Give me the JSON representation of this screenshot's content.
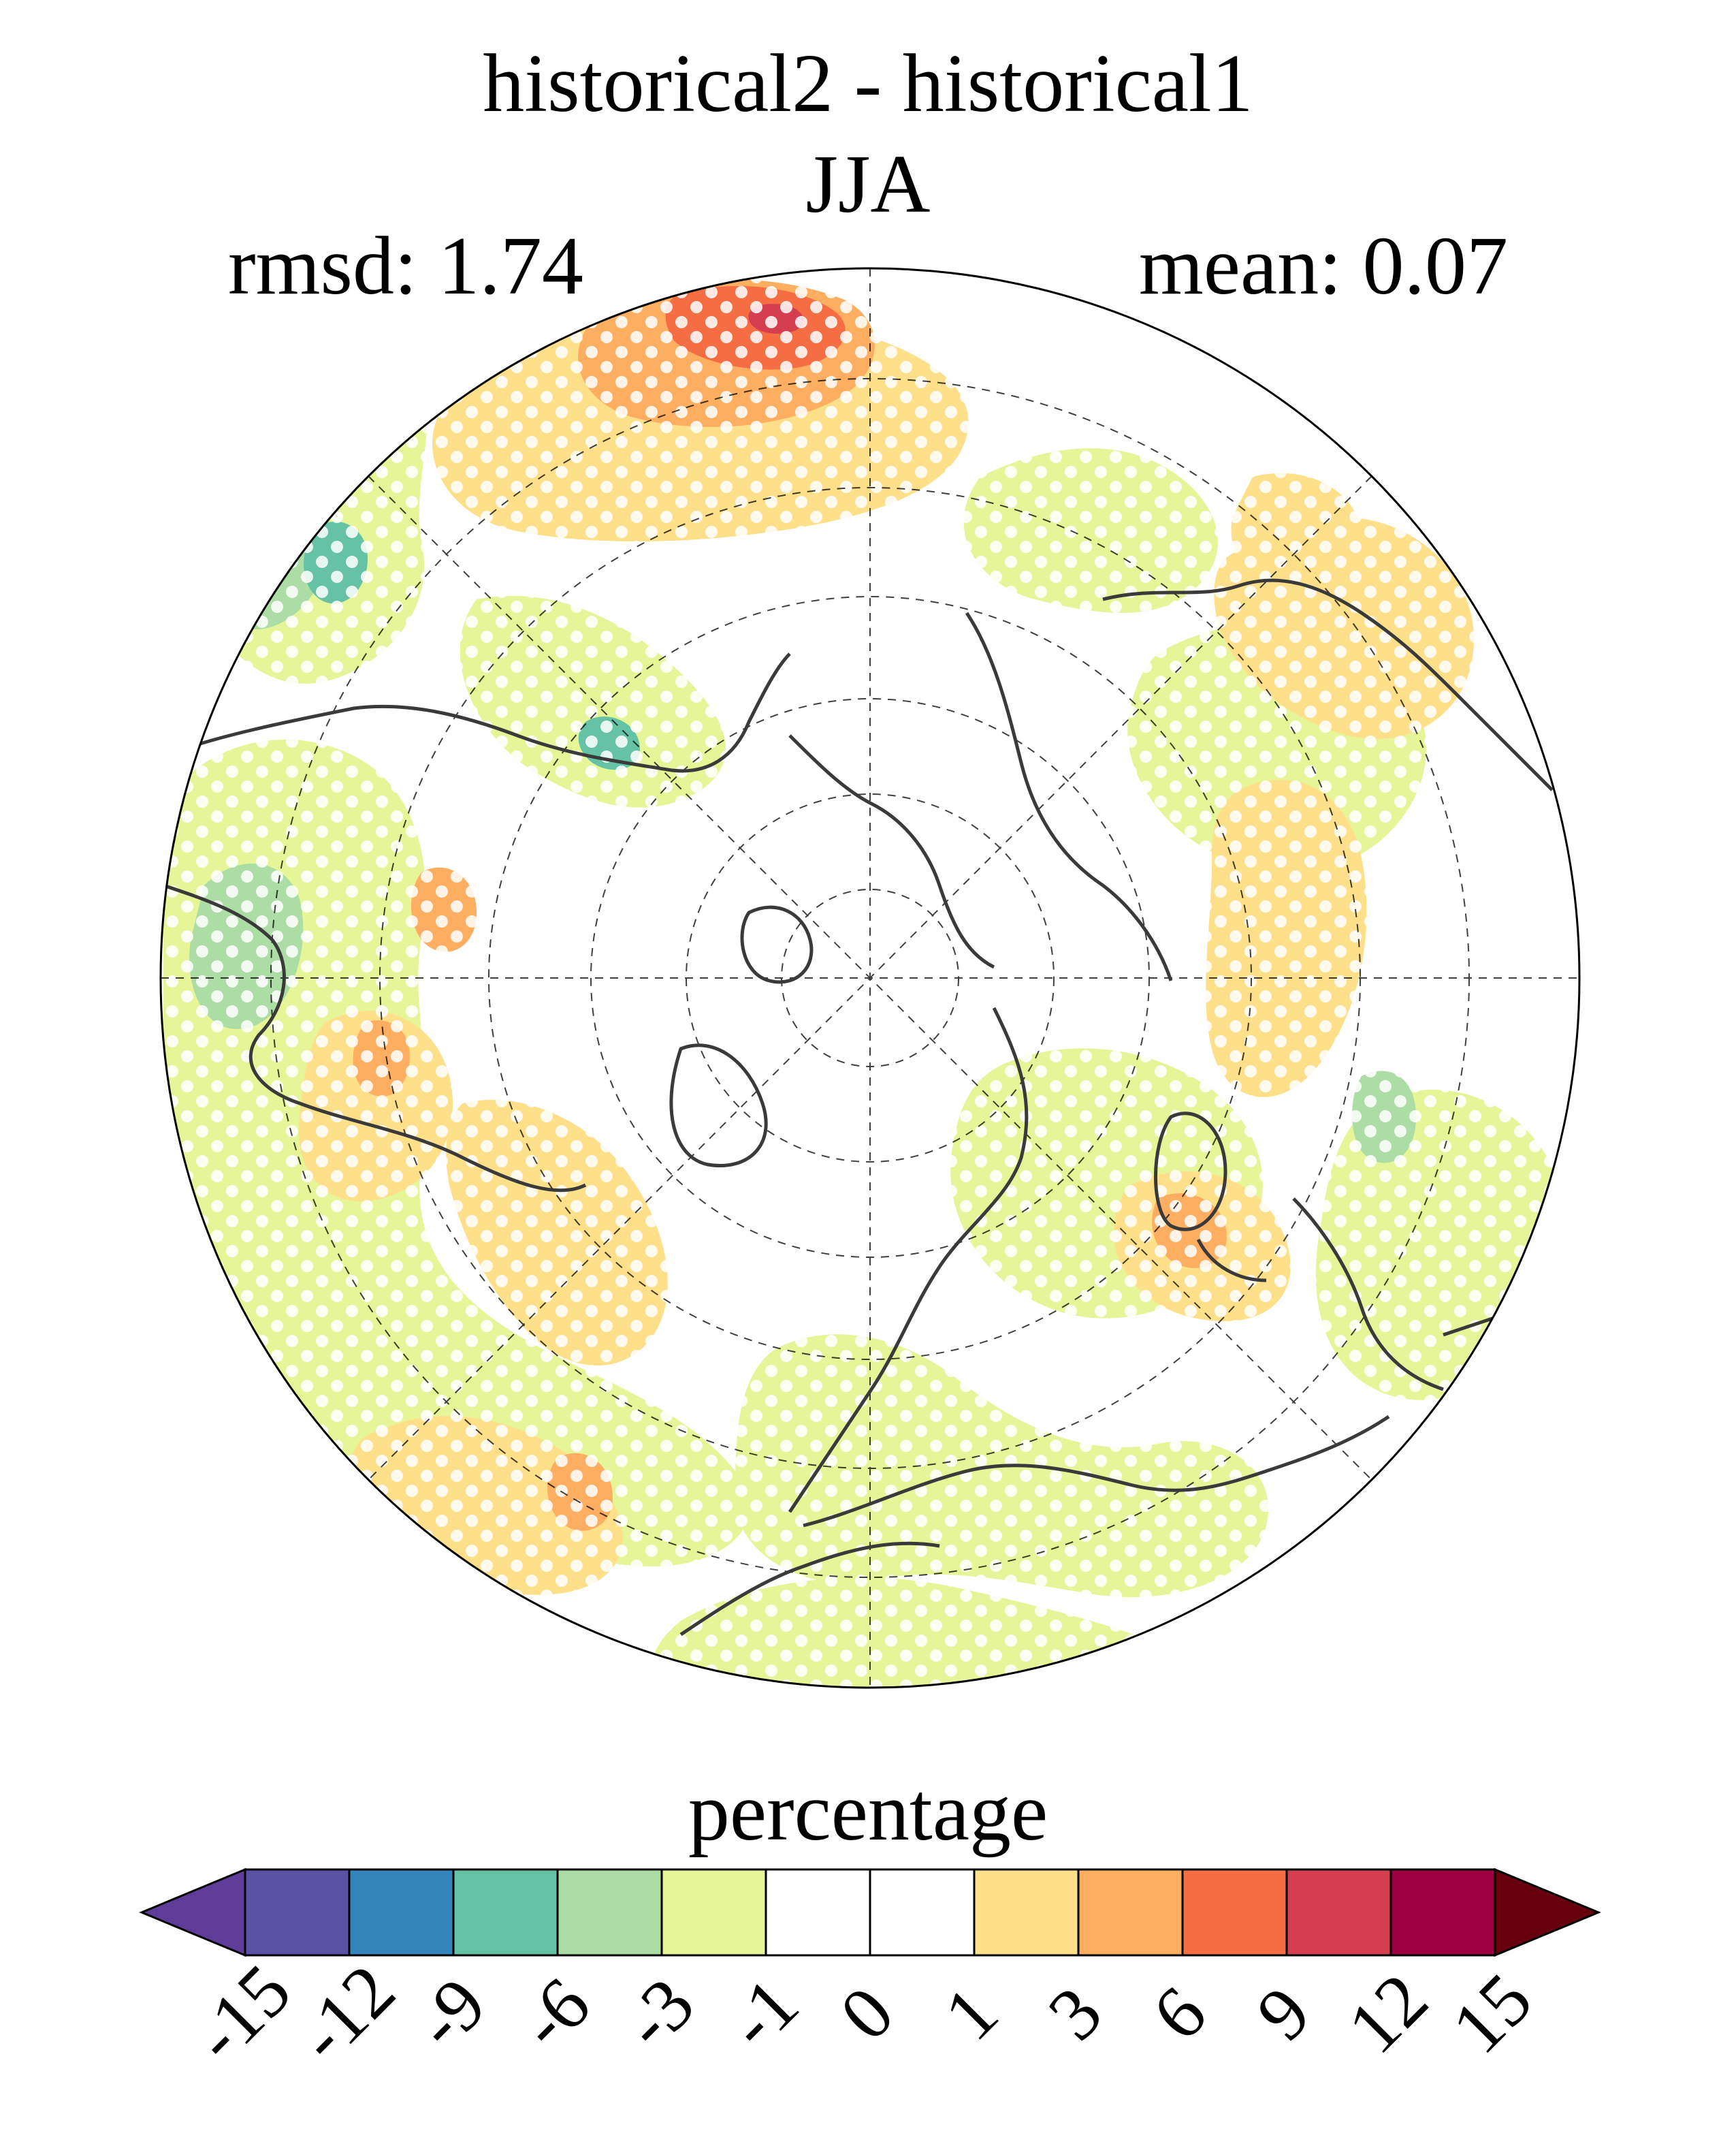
{
  "title": "historical2 - historical1",
  "subtitle": "JJA",
  "stats": {
    "rmsd": "rmsd: 1.74",
    "mean": "mean: 0.07"
  },
  "colorbar": {
    "label": "percentage",
    "tick_labels": [
      "-15",
      "-12",
      "-9",
      "-6",
      "-3",
      "-1",
      "0",
      "1",
      "3",
      "6",
      "9",
      "12",
      "15"
    ],
    "bin_colors": [
      "#5e3c99",
      "#5a52a4",
      "#3386bc",
      "#66c2a5",
      "#abdda4",
      "#e6f598",
      "#ffffff",
      "#ffffff",
      "#fee08b",
      "#fdae61",
      "#f46d43",
      "#d53e4f",
      "#9e0142",
      "#67000d"
    ],
    "extend": "both"
  },
  "map": {
    "projection": "north-polar-stereographic",
    "hatching": "white dots mark stippled regions"
  }
}
